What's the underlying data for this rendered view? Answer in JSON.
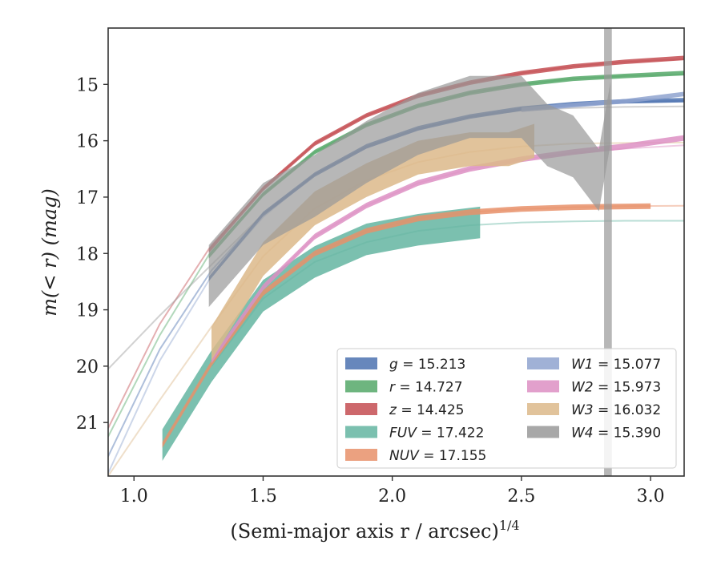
{
  "chart_data": {
    "type": "line",
    "xlabel": "(Semi-major axis r / arcsec)",
    "xlabel_power": "1/4",
    "ylabel": "m(< r) (mag)",
    "xlim": [
      0.9,
      3.13
    ],
    "ylim": [
      21.95,
      14.0
    ],
    "y_inverted": true,
    "grid": false,
    "legend_placement": "lower-right",
    "x_ticks": [
      "1.0",
      "1.5",
      "2.0",
      "2.5",
      "3.0"
    ],
    "y_ticks": [
      "15",
      "16",
      "17",
      "18",
      "19",
      "20",
      "21"
    ],
    "series": [
      {
        "name": "g",
        "value": "15.213",
        "color": "#4c72b0",
        "model": [
          [
            0.9,
            21.6
          ],
          [
            1.1,
            19.7
          ],
          [
            1.3,
            18.3
          ],
          [
            1.5,
            17.3
          ],
          [
            1.7,
            16.6
          ],
          [
            1.9,
            16.12
          ],
          [
            2.1,
            15.8
          ],
          [
            2.3,
            15.57
          ],
          [
            2.5,
            15.43
          ],
          [
            2.7,
            15.35
          ],
          [
            2.9,
            15.31
          ],
          [
            3.13,
            15.29
          ]
        ],
        "data": [
          [
            1.29,
            18.45
          ],
          [
            1.5,
            17.3
          ],
          [
            1.7,
            16.6
          ],
          [
            1.9,
            16.1
          ],
          [
            2.1,
            15.78
          ],
          [
            2.3,
            15.57
          ],
          [
            2.5,
            15.43
          ],
          [
            2.7,
            15.35
          ],
          [
            2.9,
            15.3
          ],
          [
            3.13,
            15.28
          ]
        ],
        "band_halfwidth": 0.04
      },
      {
        "name": "r",
        "value": "14.727",
        "color": "#55a868",
        "model": [
          [
            0.9,
            21.25
          ],
          [
            1.1,
            19.45
          ],
          [
            1.3,
            17.95
          ],
          [
            1.5,
            16.95
          ],
          [
            1.7,
            16.2
          ],
          [
            1.9,
            15.72
          ],
          [
            2.1,
            15.38
          ],
          [
            2.3,
            15.15
          ],
          [
            2.5,
            15.0
          ],
          [
            2.7,
            14.9
          ],
          [
            2.9,
            14.85
          ],
          [
            3.13,
            14.82
          ]
        ],
        "data": [
          [
            1.29,
            18.05
          ],
          [
            1.5,
            16.95
          ],
          [
            1.7,
            16.2
          ],
          [
            1.9,
            15.72
          ],
          [
            2.1,
            15.38
          ],
          [
            2.3,
            15.15
          ],
          [
            2.5,
            15.0
          ],
          [
            2.7,
            14.9
          ],
          [
            2.9,
            14.85
          ],
          [
            3.13,
            14.8
          ]
        ],
        "band_halfwidth": 0.04
      },
      {
        "name": "z",
        "value": "14.425",
        "color": "#c44e52",
        "model": [
          [
            0.9,
            21.1
          ],
          [
            1.1,
            19.25
          ],
          [
            1.3,
            17.85
          ],
          [
            1.5,
            16.85
          ],
          [
            1.7,
            16.05
          ],
          [
            1.9,
            15.55
          ],
          [
            2.1,
            15.2
          ],
          [
            2.3,
            14.97
          ],
          [
            2.5,
            14.8
          ],
          [
            2.7,
            14.68
          ],
          [
            2.9,
            14.6
          ],
          [
            3.13,
            14.55
          ]
        ],
        "data": [
          [
            1.29,
            17.95
          ],
          [
            1.5,
            16.85
          ],
          [
            1.7,
            16.05
          ],
          [
            1.9,
            15.55
          ],
          [
            2.1,
            15.2
          ],
          [
            2.3,
            14.97
          ],
          [
            2.5,
            14.8
          ],
          [
            2.7,
            14.68
          ],
          [
            2.9,
            14.6
          ],
          [
            3.13,
            14.53
          ]
        ],
        "band_halfwidth": 0.04
      },
      {
        "name": "FUV",
        "value": "17.422",
        "color": "#64b5a1",
        "model": [
          [
            1.3,
            20.0
          ],
          [
            1.5,
            18.8
          ],
          [
            1.7,
            18.15
          ],
          [
            1.9,
            17.8
          ],
          [
            2.1,
            17.6
          ],
          [
            2.3,
            17.5
          ],
          [
            2.5,
            17.45
          ],
          [
            2.7,
            17.43
          ],
          [
            2.9,
            17.42
          ],
          [
            3.13,
            17.42
          ]
        ],
        "data": [
          [
            1.11,
            21.4
          ],
          [
            1.3,
            20.0
          ],
          [
            1.5,
            18.75
          ],
          [
            1.7,
            18.15
          ],
          [
            1.9,
            17.75
          ],
          [
            2.1,
            17.58
          ],
          [
            2.34,
            17.45
          ]
        ],
        "band_halfwidth": 0.28
      },
      {
        "name": "NUV",
        "value": "17.155",
        "color": "#e8906a",
        "model": [
          [
            1.3,
            19.95
          ],
          [
            1.5,
            18.75
          ],
          [
            1.7,
            18.0
          ],
          [
            1.9,
            17.6
          ],
          [
            2.1,
            17.38
          ],
          [
            2.3,
            17.27
          ],
          [
            2.5,
            17.21
          ],
          [
            2.7,
            17.18
          ],
          [
            2.9,
            17.16
          ],
          [
            3.13,
            17.155
          ]
        ],
        "data": [
          [
            1.11,
            21.4
          ],
          [
            1.3,
            19.95
          ],
          [
            1.5,
            18.7
          ],
          [
            1.7,
            18.0
          ],
          [
            1.9,
            17.6
          ],
          [
            2.1,
            17.38
          ],
          [
            2.3,
            17.27
          ],
          [
            2.5,
            17.21
          ],
          [
            2.7,
            17.18
          ],
          [
            3.0,
            17.16
          ]
        ],
        "band_halfwidth": 0.05
      },
      {
        "name": "W1",
        "value": "15.077",
        "color": "#8fa3cf",
        "model": [
          [
            0.9,
            21.9
          ],
          [
            1.1,
            19.9
          ],
          [
            1.3,
            18.4
          ],
          [
            1.5,
            17.35
          ],
          [
            1.7,
            16.6
          ],
          [
            1.9,
            16.1
          ],
          [
            2.1,
            15.78
          ],
          [
            2.3,
            15.58
          ],
          [
            2.5,
            15.45
          ],
          [
            2.7,
            15.37
          ],
          [
            2.9,
            15.32
          ],
          [
            3.13,
            15.3
          ]
        ],
        "data": [
          [
            2.5,
            15.45
          ],
          [
            2.7,
            15.37
          ],
          [
            2.9,
            15.3
          ],
          [
            3.13,
            15.17
          ]
        ],
        "band_halfwidth": 0.04
      },
      {
        "name": "W2",
        "value": "15.973",
        "color": "#dd8fc3",
        "model": [
          [
            1.3,
            19.9
          ],
          [
            1.5,
            18.6
          ],
          [
            1.7,
            17.7
          ],
          [
            1.9,
            17.15
          ],
          [
            2.1,
            16.75
          ],
          [
            2.3,
            16.5
          ],
          [
            2.5,
            16.33
          ],
          [
            2.7,
            16.22
          ],
          [
            2.9,
            16.14
          ],
          [
            3.13,
            16.08
          ]
        ],
        "data": [
          [
            1.3,
            19.9
          ],
          [
            1.5,
            18.6
          ],
          [
            1.7,
            17.7
          ],
          [
            1.9,
            17.15
          ],
          [
            2.1,
            16.75
          ],
          [
            2.3,
            16.5
          ],
          [
            2.5,
            16.33
          ],
          [
            2.7,
            16.2
          ],
          [
            2.9,
            16.1
          ],
          [
            3.13,
            15.95
          ]
        ],
        "band_halfwidth": 0.05
      },
      {
        "name": "W3",
        "value": "16.032",
        "color": "#dcb98a",
        "model": [
          [
            0.9,
            21.95
          ],
          [
            1.1,
            20.6
          ],
          [
            1.3,
            19.3
          ],
          [
            1.5,
            18.05
          ],
          [
            1.7,
            17.2
          ],
          [
            1.9,
            16.7
          ],
          [
            2.1,
            16.38
          ],
          [
            2.3,
            16.2
          ],
          [
            2.5,
            16.1
          ],
          [
            2.7,
            16.05
          ],
          [
            2.9,
            16.04
          ],
          [
            3.13,
            16.032
          ]
        ],
        "data": [
          [
            1.3,
            19.6
          ],
          [
            1.5,
            18.1
          ],
          [
            1.7,
            17.2
          ],
          [
            1.9,
            16.7
          ],
          [
            2.1,
            16.3
          ],
          [
            2.3,
            16.15
          ],
          [
            2.45,
            16.15
          ],
          [
            2.55,
            16.0
          ]
        ],
        "band_halfwidth": 0.3
      },
      {
        "name": "W4",
        "value": "15.390",
        "color": "#999999",
        "model": [
          [
            0.9,
            20.05
          ],
          [
            1.1,
            19.1
          ],
          [
            1.3,
            18.2
          ],
          [
            1.5,
            17.3
          ],
          [
            1.7,
            16.6
          ],
          [
            1.9,
            16.1
          ],
          [
            2.1,
            15.78
          ],
          [
            2.3,
            15.58
          ],
          [
            2.5,
            15.46
          ],
          [
            2.7,
            15.42
          ],
          [
            2.9,
            15.4
          ],
          [
            3.13,
            15.39
          ]
        ],
        "data": [
          [
            1.29,
            18.4
          ],
          [
            1.5,
            17.3
          ],
          [
            1.7,
            16.8
          ],
          [
            1.9,
            16.2
          ],
          [
            2.1,
            15.7
          ],
          [
            2.3,
            15.4
          ],
          [
            2.5,
            15.4
          ],
          [
            2.6,
            15.9
          ],
          [
            2.7,
            16.1
          ],
          [
            2.8,
            16.7
          ],
          [
            2.845,
            15.5
          ]
        ],
        "band_halfwidth": 0.55
      }
    ]
  }
}
